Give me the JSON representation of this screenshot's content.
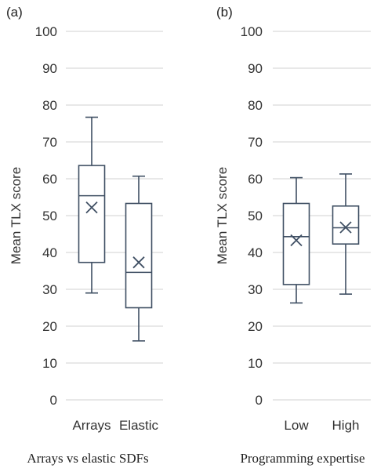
{
  "colors": {
    "box_stroke": "#3f4f63",
    "grid": "#d9d9d9",
    "mean_marker": "#3f4f63"
  },
  "chart_data": [
    {
      "type": "box",
      "panel_label": "(a)",
      "caption": "Arrays vs elastic SDFs",
      "ylabel": "Mean TLX score",
      "ylim": [
        0,
        100
      ],
      "yticks": [
        0,
        10,
        20,
        30,
        40,
        50,
        60,
        70,
        80,
        90,
        100
      ],
      "grid": true,
      "categories": [
        "Arrays",
        "Elastic"
      ],
      "boxes": [
        {
          "category": "Arrays",
          "min": 29,
          "q1": 37.3,
          "median": 55.4,
          "q3": 63.6,
          "max": 76.7,
          "mean": 52.2
        },
        {
          "category": "Elastic",
          "min": 16,
          "q1": 25,
          "median": 34.6,
          "q3": 53.3,
          "max": 60.7,
          "mean": 37.3
        }
      ]
    },
    {
      "type": "box",
      "panel_label": "(b)",
      "caption": "Programming expertise",
      "ylabel": "Mean TLX score",
      "ylim": [
        0,
        100
      ],
      "yticks": [
        0,
        10,
        20,
        30,
        40,
        50,
        60,
        70,
        80,
        90,
        100
      ],
      "grid": true,
      "categories": [
        "Low",
        "High"
      ],
      "boxes": [
        {
          "category": "Low",
          "min": 26.3,
          "q1": 31.3,
          "median": 44.3,
          "q3": 53.3,
          "max": 60.3,
          "mean": 43.3
        },
        {
          "category": "High",
          "min": 28.7,
          "q1": 42.3,
          "median": 46.7,
          "q3": 52.6,
          "max": 61.3,
          "mean": 46.8
        }
      ]
    }
  ]
}
